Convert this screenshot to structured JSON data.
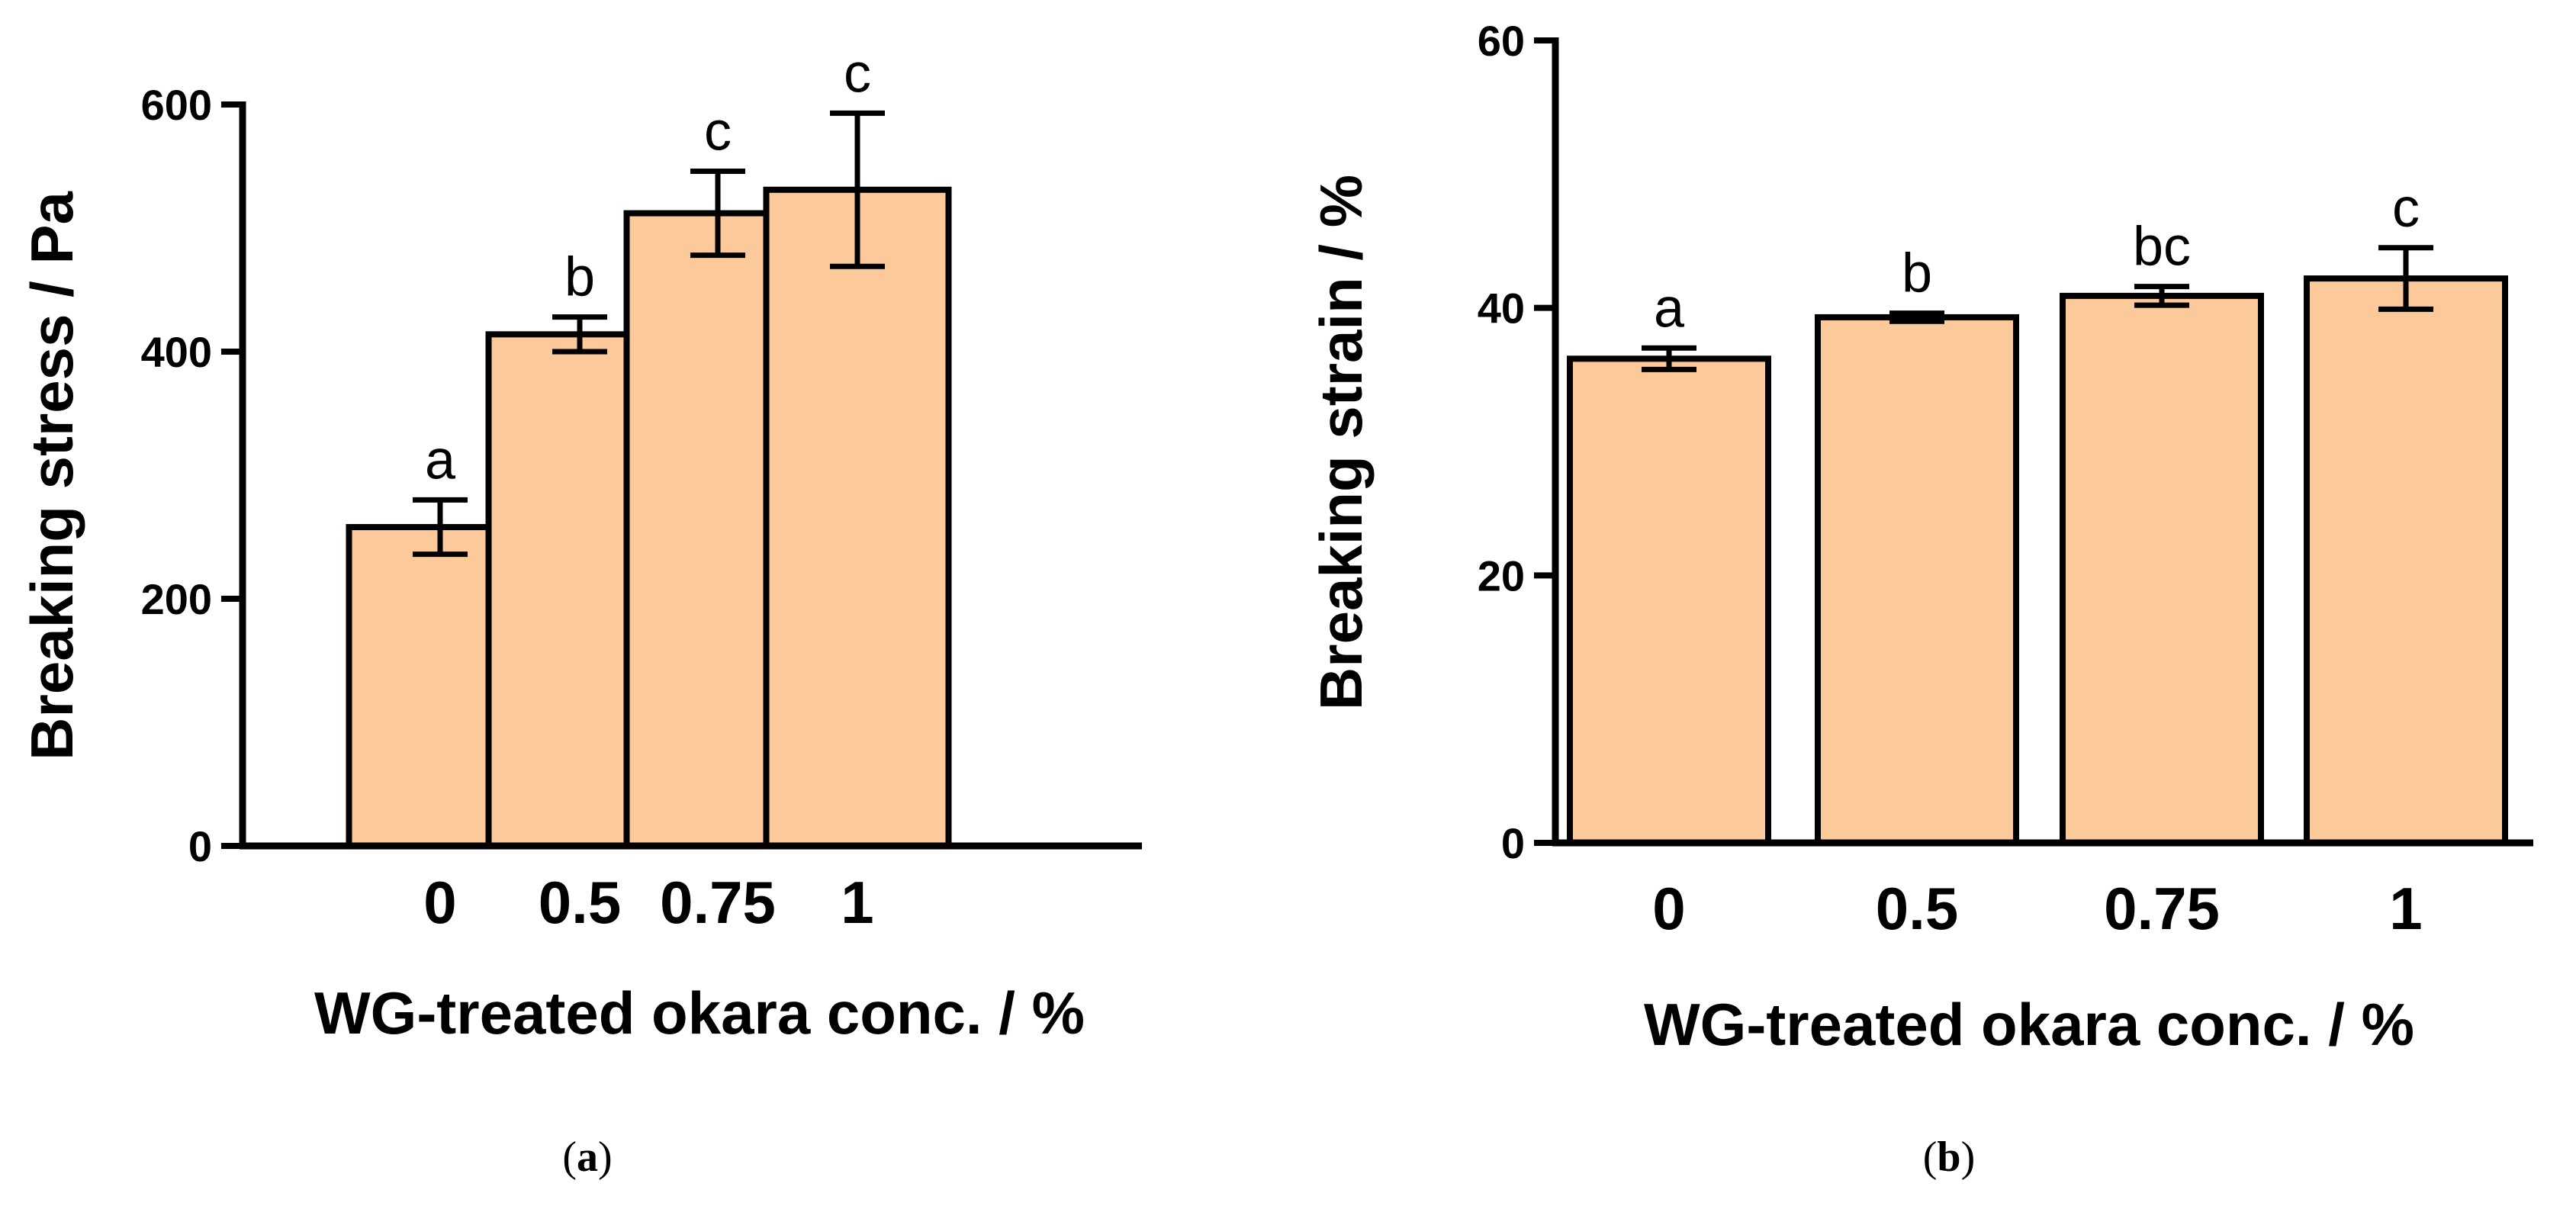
{
  "chart_data": [
    {
      "type": "bar",
      "panel": "a",
      "panel_label": {
        "open": "(",
        "letter": "a",
        "close": ")"
      },
      "categories": [
        "0",
        "0.5",
        "0.75",
        "1"
      ],
      "values": [
        258,
        414,
        512,
        531
      ],
      "errors": [
        22,
        14,
        34,
        62
      ],
      "significance": [
        "a",
        "b",
        "c",
        "c"
      ],
      "ylabel": "Breaking stress / Pa",
      "xlabel": "WG-treated okara conc. / %",
      "ylim": [
        0,
        600
      ],
      "yticks": [
        "0",
        "200",
        "400",
        "600"
      ],
      "bar_color": "#fbc99a",
      "grid": false
    },
    {
      "type": "bar",
      "panel": "b",
      "panel_label": {
        "open": "(",
        "letter": "b",
        "close": ")"
      },
      "categories": [
        "0",
        "0.5",
        "0.75",
        "1"
      ],
      "values": [
        36.2,
        39.3,
        40.9,
        42.2
      ],
      "errors": [
        0.8,
        0.3,
        0.7,
        2.3
      ],
      "significance": [
        "a",
        "b",
        "bc",
        "c"
      ],
      "ylabel": "Breaking strain / %",
      "xlabel": "WG-treated okara conc. / %",
      "ylim": [
        0,
        60
      ],
      "yticks": [
        "0",
        "20",
        "40",
        "60"
      ],
      "bar_color": "#fbc99a",
      "grid": false
    }
  ]
}
